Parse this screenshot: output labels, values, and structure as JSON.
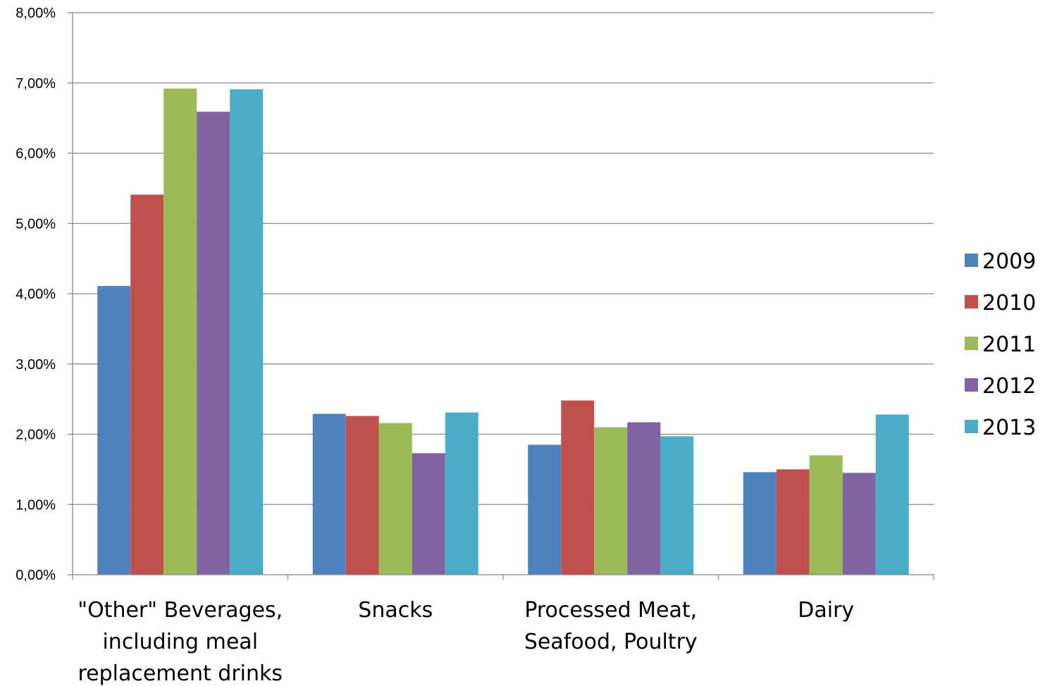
{
  "chart_data": {
    "type": "bar",
    "title": "",
    "xlabel": "",
    "ylabel": "",
    "ylim": [
      0,
      8
    ],
    "y_ticks": [
      0,
      1,
      2,
      3,
      4,
      5,
      6,
      7,
      8
    ],
    "y_tick_labels": [
      "0,00%",
      "1,00%",
      "2,00%",
      "3,00%",
      "4,00%",
      "5,00%",
      "6,00%",
      "7,00%",
      "8,00%"
    ],
    "y_unit": "percent",
    "grid": true,
    "legend_position": "right",
    "categories": [
      [
        "\"Other\" Beverages,",
        "including meal",
        "replacement drinks"
      ],
      [
        "Snacks"
      ],
      [
        "Processed Meat,",
        "Seafood, Poultry"
      ],
      [
        "Dairy"
      ]
    ],
    "series": [
      {
        "name": "2009",
        "color": "#4F81BD",
        "values": [
          4.11,
          2.29,
          1.85,
          1.46
        ]
      },
      {
        "name": "2010",
        "color": "#C0504D",
        "values": [
          5.41,
          2.26,
          2.48,
          1.5
        ]
      },
      {
        "name": "2011",
        "color": "#9BBB59",
        "values": [
          6.92,
          2.16,
          2.1,
          1.7
        ]
      },
      {
        "name": "2012",
        "color": "#8064A2",
        "values": [
          6.59,
          1.73,
          2.17,
          1.45
        ]
      },
      {
        "name": "2013",
        "color": "#4BACC6",
        "values": [
          6.91,
          2.31,
          1.97,
          2.28
        ]
      }
    ]
  }
}
